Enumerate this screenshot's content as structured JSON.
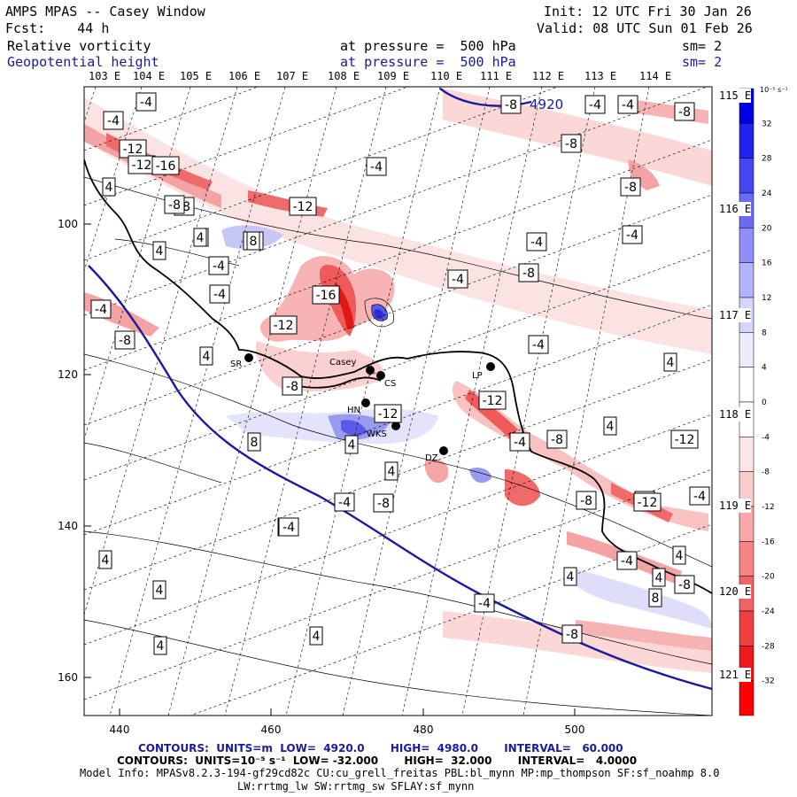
{
  "header": {
    "model": "AMPS MPAS -- Casey Window",
    "init": "Init: 12 UTC Fri 30 Jan 26",
    "fcst": "Fcst:    44 h",
    "valid": "Valid: 08 UTC Sun 01 Feb 26",
    "field1_name": "Relative vorticity",
    "field1_pressure": "at pressure =  500 hPa",
    "field1_sm": "sm= 2",
    "field2_name": "Geopotential height",
    "field2_pressure": "at pressure =  500 hPa",
    "field2_sm": "sm= 2"
  },
  "lon_top_labels": [
    "103 E",
    "104 E",
    "105 E",
    "106 E",
    "107 E",
    "108 E",
    "109 E",
    "110 E",
    "111 E",
    "112 E",
    "113 E",
    "114 E"
  ],
  "lon_right_labels": [
    "115 E",
    "116 E",
    "117 E",
    "118 E",
    "119 E",
    "120 E",
    "121 E"
  ],
  "x_axis_ticks": [
    "440",
    "460",
    "480",
    "500"
  ],
  "y_axis_ticks": [
    "100",
    "120",
    "140",
    "160"
  ],
  "colorbar": {
    "unit_label": "10⁻⁵ s⁻¹",
    "levels": [
      "32",
      "28",
      "24",
      "20",
      "16",
      "12",
      "8",
      "4",
      "0",
      "-4",
      "-8",
      "-12",
      "-16",
      "-20",
      "-24",
      "-28",
      "-32"
    ],
    "colors": [
      "#0000e6",
      "#2222f0",
      "#4646f5",
      "#6a6af7",
      "#8f8ff9",
      "#b3b3fb",
      "#d4d4fc",
      "#ececfe",
      "#ffffff",
      "#ffffff",
      "#fde6e6",
      "#fbcaca",
      "#f8a8a8",
      "#f58585",
      "#f26262",
      "#ef3e3e",
      "#ec1a1a",
      "#ff0000"
    ]
  },
  "contour_labels": [
    "-4",
    "-4",
    "-8",
    "-12",
    "4",
    "-12",
    "-16",
    "-8",
    "4",
    "-8",
    "-12",
    "-4",
    "-8",
    "-4",
    "-4",
    "4",
    "-4",
    "-8",
    "4",
    "8",
    "-4",
    "-16",
    "-8",
    "-12",
    "-4",
    "4",
    "-8",
    "-12",
    "-4",
    "-4",
    "4",
    "4",
    "-12",
    "-8",
    "-8",
    "-4",
    "-4",
    "8",
    "4",
    "-8",
    "4",
    "4",
    "-8",
    "-4",
    "-12",
    "4",
    "-8",
    "4",
    "-4",
    "-8",
    "-4",
    "-4",
    "4",
    "-8",
    "-4",
    "-8",
    "4",
    "-4",
    "-8",
    "8",
    "4",
    "-12",
    "-4",
    "4"
  ],
  "height_contour_label": "4920",
  "stations": [
    "SR",
    "Casey",
    "CS",
    "HN",
    "WKS",
    "DZ",
    "LP"
  ],
  "footer": {
    "contours1": "CONTOURS:  UNITS=m  LOW=  4920.0       HIGH=  4980.0       INTERVAL=   60.000",
    "contours2": "CONTOURS:  UNITS=10⁻⁵ s⁻¹  LOW= -32.000       HIGH=  32.000       INTERVAL=   4.0000",
    "model_info": "Model Info: MPASv8.2.3-194-gf29cd82c CU:cu_grell_freitas PBL:bl_mynn MP:mp_thompson SF:sf_noahmp 8.0",
    "model_info2": "LW:rrtmg_lw SW:rrtmg_sw SFLAY:sf_mynn"
  },
  "colors": {
    "height_line": "#1a1a9e",
    "coast": "#000000"
  }
}
